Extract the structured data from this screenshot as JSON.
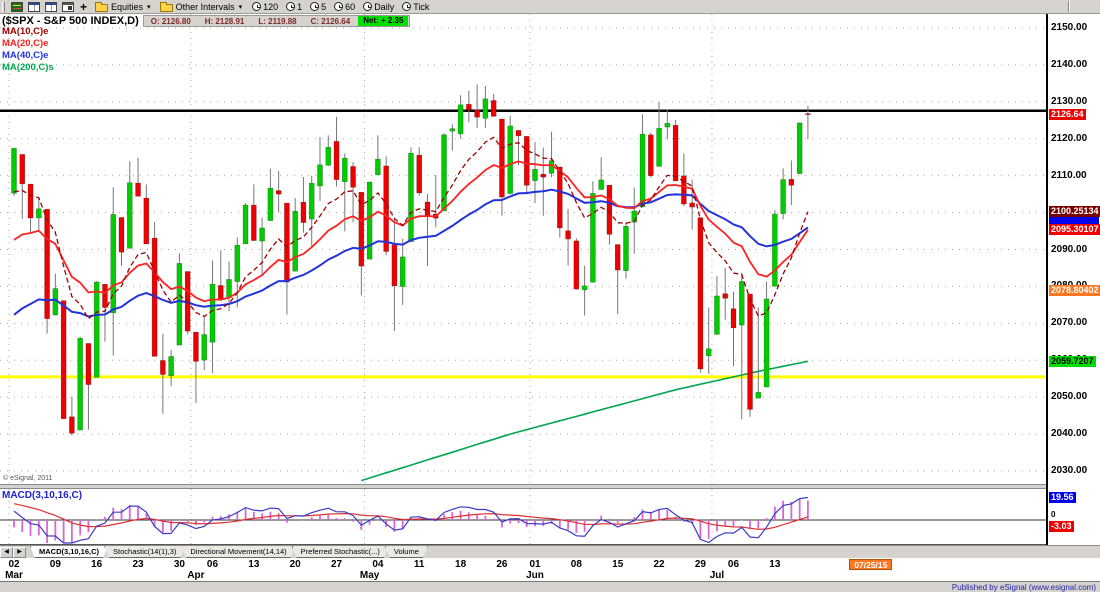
{
  "toolbar": {
    "symbol_group_label": "Equities",
    "intervals_group_label": "Other Intervals",
    "dropdown_caret": "▾",
    "add_label": "+",
    "interval_buttons": [
      "120",
      "1",
      "5",
      "60",
      "Daily",
      "Tick"
    ]
  },
  "quote_bar": {
    "title": "($SPX - S&P 500 INDEX,D)",
    "fields": [
      {
        "label": "O:",
        "value": "2126.80"
      },
      {
        "label": "H:",
        "value": "2128.91"
      },
      {
        "label": "L:",
        "value": "2119.88"
      },
      {
        "label": "C:",
        "value": "2126.64"
      }
    ],
    "net_text": "Net: + 2.35",
    "net_bg": "#00E000"
  },
  "overlays": [
    {
      "label": "MA(10,C)e",
      "color": "#A00000",
      "type": "ema",
      "period": 10,
      "seed": 2103,
      "dash": "5 3",
      "width": 1.3
    },
    {
      "label": "MA(20,C)e",
      "color": "#FF2222",
      "type": "ema",
      "period": 20,
      "seed": 2090,
      "dash": "",
      "width": 1.8
    },
    {
      "label": "MA(40,C)e",
      "color": "#2233DD",
      "type": "ema",
      "period": 40,
      "seed": 2070,
      "dash": "",
      "width": 2
    },
    {
      "label": "MA(200,C)s",
      "color": "#00A550",
      "type": "waypoints",
      "width": 1.6,
      "points": [
        [
          0,
          2008
        ],
        [
          20,
          2016
        ],
        [
          40,
          2026
        ],
        [
          50,
          2033
        ],
        [
          60,
          2040
        ],
        [
          70,
          2046
        ],
        [
          80,
          2052
        ],
        [
          90,
          2057
        ],
        [
          96,
          2059.72
        ]
      ]
    }
  ],
  "hlines": [
    {
      "price": 2127.6,
      "color": "#000000",
      "width": 2.5
    },
    {
      "price": 2055.5,
      "color": "#FFFF00",
      "width": 3
    }
  ],
  "price_axis": {
    "ticks": [
      "2150.00",
      "2140.00",
      "2130.00",
      "2120.00",
      "2110.00",
      "2100.00",
      "2090.00",
      "2080.00",
      "2070.00",
      "2060.00",
      "2050.00",
      "2040.00",
      "2030.00"
    ],
    "badges": [
      {
        "text": "",
        "price": 2097.6,
        "bg": "#0000EE",
        "fg": "#FFFFFF"
      },
      {
        "text": "2126.64",
        "price": 2126.64,
        "bg": "#EE0000",
        "fg": "#FFFFFF"
      },
      {
        "text": "2100.25134",
        "price": 2100.25134,
        "bg": "#7B0000",
        "fg": "#FFFFFF"
      },
      {
        "text": "2095.30107",
        "price": 2095.30107,
        "bg": "#EE0000",
        "fg": "#FFFFFF"
      },
      {
        "text": "2078.80402",
        "price": 2078.80402,
        "bg": "#FF7722",
        "fg": "#FFFFFF"
      },
      {
        "text": "2059.7207",
        "price": 2059.7207,
        "bg": "#00DD00",
        "fg": "#000000"
      }
    ]
  },
  "watermark": "© eSignal, 2011",
  "macd_panel": {
    "label": "MACD(3,10,16,C)",
    "label_color": "#2222CC",
    "value_badge": {
      "text": "19.56",
      "bg": "#0000EE",
      "fg": "#FFFFFF"
    },
    "signal_badge": {
      "text": "-3.03",
      "bg": "#EE0000",
      "fg": "#FFFFFF"
    },
    "zero_label": "0",
    "colors": {
      "macd": "#3C3CC8",
      "signal": "#E03030",
      "histogram": "#D966D9"
    },
    "params": {
      "fast": 3,
      "slow": 10,
      "signal": 16
    },
    "seeds": {
      "fast": 2124,
      "slow": 2112,
      "signal": 15
    }
  },
  "tabs": {
    "items": [
      "MACD(3,10,16,C)",
      "Stochastic(14(1),3)",
      "Directional Movement(14,14)",
      "Preferred Stochastic(...)",
      "Volume"
    ],
    "active": 0
  },
  "time_axis": {
    "week_ticks": [
      {
        "i": 0,
        "label": "02"
      },
      {
        "i": 5,
        "label": "09"
      },
      {
        "i": 10,
        "label": "16"
      },
      {
        "i": 15,
        "label": "23"
      },
      {
        "i": 20,
        "label": "30"
      },
      {
        "i": 24,
        "label": "06"
      },
      {
        "i": 29,
        "label": "13"
      },
      {
        "i": 34,
        "label": "20"
      },
      {
        "i": 39,
        "label": "27"
      },
      {
        "i": 44,
        "label": "04"
      },
      {
        "i": 49,
        "label": "11"
      },
      {
        "i": 54,
        "label": "18"
      },
      {
        "i": 59,
        "label": "26"
      },
      {
        "i": 63,
        "label": "01"
      },
      {
        "i": 68,
        "label": "08"
      },
      {
        "i": 73,
        "label": "15"
      },
      {
        "i": 78,
        "label": "22"
      },
      {
        "i": 83,
        "label": "29"
      },
      {
        "i": 87,
        "label": "06"
      },
      {
        "i": 92,
        "label": "13"
      }
    ],
    "month_ticks": [
      {
        "i": 0,
        "label": "Mar"
      },
      {
        "i": 22,
        "label": "Apr"
      },
      {
        "i": 43,
        "label": "May"
      },
      {
        "i": 63,
        "label": "Jun"
      },
      {
        "i": 85,
        "label": "Jul"
      }
    ],
    "date_badge": {
      "text": "07/25/15",
      "i": 101,
      "bg": "#FF7722",
      "fg": "#FFFFFF"
    }
  },
  "status_bar": {
    "publisher": "Published by eSignal (www.esignal.com)"
  },
  "chart_data": {
    "type": "candlestick",
    "title": "($SPX - S&P 500 INDEX,D)",
    "symbol": "$SPX",
    "interval": "Daily",
    "year": 2015,
    "ylim": [
      2026,
      2153
    ],
    "dates": [
      "03/02",
      "03/03",
      "03/04",
      "03/05",
      "03/06",
      "03/09",
      "03/10",
      "03/11",
      "03/12",
      "03/13",
      "03/16",
      "03/17",
      "03/18",
      "03/19",
      "03/20",
      "03/23",
      "03/24",
      "03/25",
      "03/26",
      "03/27",
      "03/30",
      "03/31",
      "04/01",
      "04/02",
      "04/06",
      "04/07",
      "04/08",
      "04/09",
      "04/10",
      "04/13",
      "04/14",
      "04/15",
      "04/16",
      "04/17",
      "04/20",
      "04/21",
      "04/22",
      "04/23",
      "04/24",
      "04/27",
      "04/28",
      "04/29",
      "04/30",
      "05/01",
      "05/04",
      "05/05",
      "05/06",
      "05/07",
      "05/08",
      "05/11",
      "05/12",
      "05/13",
      "05/14",
      "05/15",
      "05/18",
      "05/19",
      "05/20",
      "05/21",
      "05/22",
      "05/26",
      "05/27",
      "05/28",
      "05/29",
      "06/01",
      "06/02",
      "06/03",
      "06/04",
      "06/05",
      "06/08",
      "06/09",
      "06/10",
      "06/11",
      "06/12",
      "06/15",
      "06/16",
      "06/17",
      "06/18",
      "06/19",
      "06/22",
      "06/23",
      "06/24",
      "06/25",
      "06/26",
      "06/29",
      "06/30",
      "07/01",
      "07/02",
      "07/06",
      "07/07",
      "07/08",
      "07/09",
      "07/10",
      "07/13",
      "07/14",
      "07/15",
      "07/16",
      "07/17"
    ],
    "open": [
      2105.23,
      2115.76,
      2107.72,
      2098.54,
      2100.91,
      2072.25,
      2076.14,
      2044.69,
      2041.1,
      2064.56,
      2055.35,
      2080.59,
      2072.84,
      2098.69,
      2090.32,
      2107.99,
      2103.94,
      2093.1,
      2059.94,
      2055.78,
      2064.11,
      2084.05,
      2067.63,
      2060.03,
      2064.87,
      2080.26,
      2076.94,
      2081.29,
      2091.51,
      2102.03,
      2092.28,
      2097.82,
      2105.96,
      2102.58,
      2084.11,
      2102.82,
      2098.24,
      2107.21,
      2112.82,
      2119.29,
      2108.35,
      2112.49,
      2105.52,
      2087.38,
      2110.23,
      2112.63,
      2091.26,
      2079.96,
      2092.13,
      2115.56,
      2102.87,
      2099.62,
      2100.43,
      2122.07,
      2121.3,
      2129.34,
      2127.79,
      2125.55,
      2130.36,
      2125.34,
      2105.13,
      2122.27,
      2120.66,
      2108.64,
      2110.41,
      2110.64,
      2112.35,
      2095.09,
      2092.34,
      2079.07,
      2081.12,
      2106.24,
      2107.43,
      2091.34,
      2084.26,
      2097.4,
      2101.58,
      2121.06,
      2112.5,
      2123.16,
      2123.65,
      2109.96,
      2102.62,
      2098.63,
      2061.19,
      2067.0,
      2078.03,
      2073.95,
      2069.52,
      2077.95,
      2049.73,
      2052.74,
      2080.03,
      2099.72,
      2109.01,
      2110.55,
      2126.8
    ],
    "high": [
      2117.52,
      2115.76,
      2107.72,
      2104.25,
      2100.91,
      2083.49,
      2076.14,
      2050.08,
      2066.41,
      2064.56,
      2081.41,
      2080.59,
      2106.85,
      2098.69,
      2113.92,
      2114.86,
      2107.63,
      2097.43,
      2067.15,
      2062.83,
      2088.97,
      2084.05,
      2067.63,
      2072.17,
      2086.99,
      2089.81,
      2086.69,
      2093.31,
      2102.61,
      2107.65,
      2098.62,
      2111.91,
      2111.3,
      2102.58,
      2103.94,
      2109.64,
      2109.98,
      2120.49,
      2120.92,
      2125.92,
      2116.04,
      2113.65,
      2105.52,
      2108.41,
      2120.95,
      2115.24,
      2098.42,
      2092.9,
      2117.66,
      2117.69,
      2105.06,
      2110.19,
      2121.45,
      2123.89,
      2131.78,
      2133.02,
      2134.72,
      2134.28,
      2132.15,
      2125.34,
      2126.22,
      2122.27,
      2120.66,
      2119.15,
      2117.59,
      2121.92,
      2112.35,
      2100.99,
      2093.01,
      2085.62,
      2108.5,
      2115.02,
      2107.43,
      2091.34,
      2097.4,
      2106.79,
      2126.65,
      2121.64,
      2129.87,
      2128.03,
      2125.1,
      2116.04,
      2108.92,
      2098.63,
      2074.28,
      2082.78,
      2085.06,
      2078.61,
      2083.74,
      2077.95,
      2074.28,
      2081.31,
      2100.67,
      2111.98,
      2114.14,
      2124.42,
      2128.91
    ],
    "low": [
      2104.5,
      2098.26,
      2094.49,
      2095.22,
      2067.27,
      2072.21,
      2044.16,
      2039.69,
      2041.1,
      2041.17,
      2055.35,
      2065.08,
      2061.23,
      2085.56,
      2090.32,
      2104.42,
      2091.5,
      2061.05,
      2045.5,
      2052.96,
      2064.11,
      2067.04,
      2048.38,
      2057.32,
      2056.52,
      2076.1,
      2073.3,
      2074.29,
      2091.51,
      2092.33,
      2083.24,
      2097.82,
      2100.02,
      2072.37,
      2084.11,
      2094.56,
      2091.05,
      2103.18,
      2112.57,
      2107.04,
      2094.89,
      2097.41,
      2077.59,
      2087.38,
      2110.23,
      2088.46,
      2067.93,
      2074.99,
      2092.13,
      2104.58,
      2085.57,
      2096.04,
      2100.43,
      2116.81,
      2120.01,
      2124.5,
      2122.95,
      2122.95,
      2126.06,
      2099.18,
      2105.13,
      2112.86,
      2104.89,
      2102.54,
      2099.14,
      2109.61,
      2093.23,
      2085.67,
      2079.11,
      2072.14,
      2081.12,
      2106.24,
      2091.33,
      2072.49,
      2082.1,
      2088.86,
      2101.58,
      2109.45,
      2112.5,
      2119.89,
      2108.58,
      2101.78,
      2095.38,
      2056.64,
      2056.32,
      2067.0,
      2071.02,
      2058.4,
      2044.02,
      2044.66,
      2049.73,
      2052.74,
      2080.03,
      2098.18,
      2102.05,
      2110.55,
      2119.88
    ],
    "close": [
      2117.39,
      2107.78,
      2098.53,
      2101.04,
      2071.26,
      2079.43,
      2044.16,
      2040.24,
      2065.95,
      2053.4,
      2081.19,
      2074.28,
      2099.5,
      2089.27,
      2108.1,
      2104.42,
      2091.5,
      2061.05,
      2056.15,
      2061.02,
      2086.24,
      2067.89,
      2059.69,
      2066.96,
      2080.62,
      2076.33,
      2081.9,
      2091.18,
      2102.06,
      2092.43,
      2095.84,
      2106.63,
      2104.99,
      2081.18,
      2100.4,
      2097.29,
      2107.96,
      2112.93,
      2117.69,
      2108.92,
      2114.76,
      2106.85,
      2085.51,
      2108.29,
      2114.49,
      2089.46,
      2080.15,
      2088.0,
      2116.1,
      2105.33,
      2099.12,
      2098.48,
      2121.1,
      2122.73,
      2129.2,
      2127.83,
      2125.85,
      2130.82,
      2126.06,
      2104.2,
      2123.48,
      2120.79,
      2107.39,
      2111.73,
      2109.6,
      2114.07,
      2095.84,
      2092.83,
      2079.28,
      2080.15,
      2105.2,
      2108.86,
      2094.11,
      2084.43,
      2096.29,
      2100.44,
      2121.24,
      2109.99,
      2122.85,
      2124.2,
      2108.58,
      2102.31,
      2101.49,
      2057.64,
      2063.11,
      2077.42,
      2076.78,
      2068.76,
      2081.34,
      2046.68,
      2051.31,
      2076.62,
      2099.6,
      2108.95,
      2107.4,
      2124.29,
      2126.64
    ],
    "up_color": "#00CC00",
    "down_color": "#EE0000",
    "wick_color": "#777777"
  }
}
